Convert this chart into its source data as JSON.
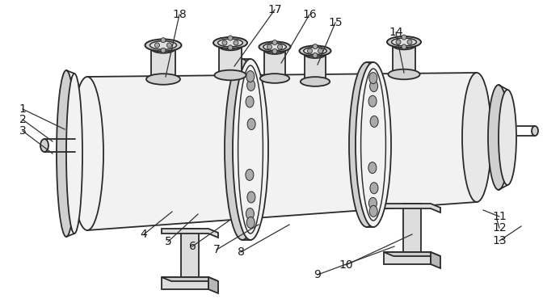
{
  "bg": "#ffffff",
  "lc": "#2a2a2a",
  "lw": 1.3,
  "fig_w": 6.72,
  "fig_h": 3.75,
  "dpi": 100,
  "body_fill": "#f2f2f2",
  "body_fill2": "#e8e8e8",
  "flange_fill": "#d0d0d0",
  "dark_fill": "#c0c0c0",
  "bolt_fill": "#aaaaaa",
  "support_fill": "#dddddd",
  "nozzle_fill": "#e0e0e0",
  "label_fontsize": 10,
  "label_color": "#1a1a1a",
  "leader_color": "#333333",
  "leader_lw": 0.9
}
